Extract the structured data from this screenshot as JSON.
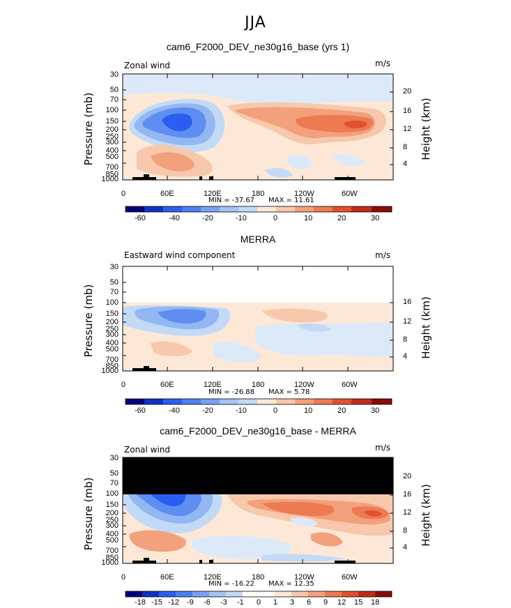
{
  "main_title": "JJA",
  "chart_data": [
    {
      "type": "heatmap",
      "title": "cam6_F2000_DEV_ne30g16_base (yrs 1)",
      "left_label": "Zonal wind",
      "units": "m/s",
      "ylabel": "Pressure (mb)",
      "ylabel_right": "Height (km)",
      "pressure_ticks": [
        "30",
        "50",
        "70",
        "100",
        "150",
        "200",
        "250",
        "300",
        "400",
        "500",
        "700",
        "850",
        "1000"
      ],
      "height_ticks": [
        "20",
        "16",
        "12",
        "8",
        "4"
      ],
      "lon_ticks": [
        "0",
        "60E",
        "120E",
        "180",
        "120W",
        "60W"
      ],
      "min_label": "MIN = -37.67",
      "max_label": "MAX =  11.61",
      "min": -37.67,
      "max": 11.61,
      "colorbar_levels": [
        "-60",
        "-40",
        "-20",
        "-10",
        "0",
        "10",
        "20",
        "30"
      ]
    },
    {
      "type": "heatmap",
      "title": "MERRA",
      "left_label": "Eastward wind component",
      "units": "m/s",
      "ylabel": "Pressure (mb)",
      "ylabel_right": "Height (km)",
      "pressure_ticks": [
        "30",
        "50",
        "70",
        "100",
        "150",
        "200",
        "250",
        "300",
        "400",
        "500",
        "700",
        "850",
        "1000"
      ],
      "height_ticks": [
        "16",
        "12",
        "8",
        "4"
      ],
      "lon_ticks": [
        "0",
        "60E",
        "120E",
        "180",
        "120W",
        "60W"
      ],
      "min_label": "MIN = -26.88",
      "max_label": "MAX =   5.78",
      "min": -26.88,
      "max": 5.78,
      "colorbar_levels": [
        "-60",
        "-40",
        "-20",
        "-10",
        "0",
        "10",
        "20",
        "30"
      ]
    },
    {
      "type": "heatmap",
      "title": "cam6_F2000_DEV_ne30g16_base - MERRA",
      "left_label": "Zonal wind",
      "units": "m/s",
      "ylabel": "Pressure (mb)",
      "ylabel_right": "Height (km)",
      "pressure_ticks": [
        "30",
        "50",
        "70",
        "100",
        "150",
        "200",
        "250",
        "300",
        "400",
        "500",
        "700",
        "850",
        "1000"
      ],
      "height_ticks": [
        "20",
        "16",
        "12",
        "8",
        "4"
      ],
      "lon_ticks": [
        "0",
        "60E",
        "120E",
        "180",
        "120W",
        "60W"
      ],
      "min_label": "MIN = -16.22",
      "max_label": "MAX =  12.35",
      "min": -16.22,
      "max": 12.35,
      "colorbar_levels": [
        "-18",
        "-15",
        "-12",
        "-9",
        "-6",
        "-3",
        "-1",
        "0",
        "1",
        "3",
        "6",
        "9",
        "12",
        "15",
        "18"
      ]
    }
  ],
  "colors": {
    "blues": [
      "#06007a",
      "#1030c8",
      "#2a5ef0",
      "#5f8ef2",
      "#93b7f2",
      "#c3daf6",
      "#dce9f9"
    ],
    "reds": [
      "#fde8d8",
      "#f8c8ac",
      "#f3a07c",
      "#ec7a52",
      "#e25030",
      "#c22a1a",
      "#8a0c08"
    ]
  }
}
